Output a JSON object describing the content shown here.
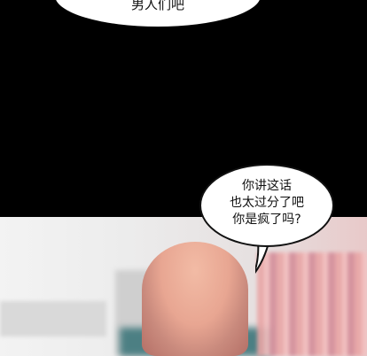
{
  "bubble_top": {
    "text": "男人们吧"
  },
  "bubble_right": {
    "lines": [
      "你讲这话",
      "也太过分了吧",
      "你是疯了吗?"
    ]
  }
}
